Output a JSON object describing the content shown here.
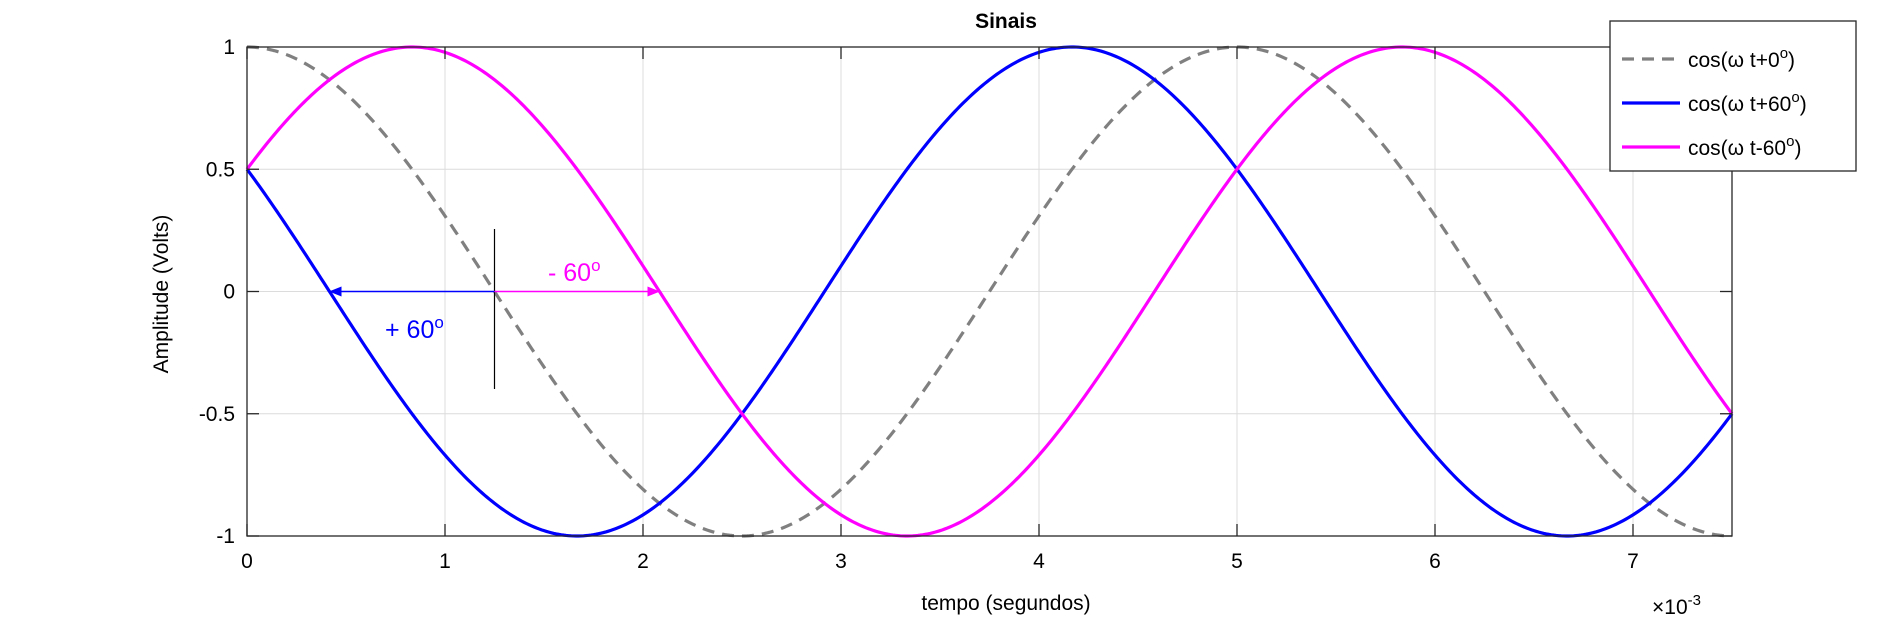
{
  "chart_data": {
    "type": "line",
    "title": "Sinais",
    "xlabel": "tempo (segundos)",
    "ylabel": "Amplitude (Volts)",
    "x_exponent_label": "×10",
    "x_exponent_power": "-3",
    "xlim": [
      0,
      7.5
    ],
    "ylim": [
      -1,
      1
    ],
    "xticks": [
      0,
      1,
      2,
      3,
      4,
      5,
      6,
      7
    ],
    "yticks": [
      -1,
      -0.5,
      0,
      0.5,
      1
    ],
    "xtick_labels": [
      "0",
      "1",
      "2",
      "3",
      "4",
      "5",
      "6",
      "7"
    ],
    "ytick_labels": [
      "-1",
      "-0.5",
      "0",
      "0.5",
      "1"
    ],
    "grid": true,
    "legend_position": "top-right",
    "period": 5,
    "series": [
      {
        "name": "cos(ω t+0º)",
        "legend_base": "cos(ω t+0",
        "legend_tail": ")",
        "phase_deg": 0,
        "color": "#808080",
        "dashed": true
      },
      {
        "name": "cos(ω t+60º)",
        "legend_base": "cos(ω t+60",
        "legend_tail": ")",
        "phase_deg": 60,
        "color": "#0000ff",
        "dashed": false
      },
      {
        "name": "cos(ω t-60º)",
        "legend_base": "cos(ω t-60",
        "legend_tail": ")",
        "phase_deg": -60,
        "color": "#ff00ff",
        "dashed": false
      }
    ],
    "degree_symbol": "o",
    "annotations": [
      {
        "text_base": "+ 60",
        "color": "#0000ff",
        "arrow_from": 1.25,
        "arrow_to": 0.42
      },
      {
        "text_base": "- 60",
        "color": "#ff00ff",
        "arrow_from": 1.25,
        "arrow_to": 2.08
      }
    ],
    "marker_line_x": 1.25
  }
}
